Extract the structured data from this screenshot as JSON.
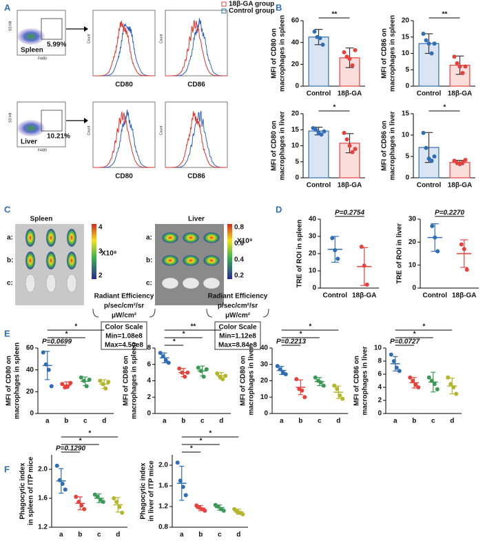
{
  "panel_labels": [
    "A",
    "B",
    "C",
    "D",
    "E",
    "F"
  ],
  "panel_a": {
    "legend": [
      "18β-GA group",
      "Control group"
    ],
    "rows": [
      {
        "tissue": "Spleen",
        "gate": "5.99%"
      },
      {
        "tissue": "Liver",
        "gate": "10.21%"
      }
    ],
    "markers": [
      "CD80",
      "CD86"
    ],
    "ss_axis": "SS Hlt",
    "fsc_axis": "F4/80",
    "count_axis": "Count"
  },
  "panel_c": {
    "groups": [
      {
        "title": "Spleen",
        "scale_ticks": [
          "4",
          "3",
          "2"
        ],
        "multiplier": "X10⁸",
        "min": "Min=1.08e8",
        "max": "Max=4.50e8"
      },
      {
        "title": "Liver",
        "scale_ticks": [
          "0.8",
          "0.6",
          "0.4",
          "0.2"
        ],
        "multiplier": "X10⁹",
        "min": "Min=1.12e8",
        "max": "Max=8.84e8"
      }
    ],
    "rows": [
      "a:",
      "b:",
      "c:"
    ],
    "unit": [
      "Radiant Efficiency",
      "p/sec/cm²/sr",
      "μW/cm²"
    ],
    "scale_title": "Color Scale"
  },
  "chart_data": [
    {
      "type": "bar",
      "ylabel": [
        "MFI of CD80 on",
        "macrophages in spleen"
      ],
      "categories": [
        "Control",
        "18β-GA"
      ],
      "colors": [
        "#2f6db5",
        "#e8413c"
      ],
      "means": [
        45,
        26
      ],
      "sd": [
        7,
        9
      ],
      "points": [
        [
          50,
          45,
          44,
          38
        ],
        [
          31,
          27,
          25,
          19,
          33
        ]
      ],
      "ylim": [
        0,
        60
      ],
      "yticks": [
        0,
        20,
        40,
        60
      ],
      "comparisons": [
        "**"
      ]
    },
    {
      "type": "bar",
      "ylabel": [
        "MFI of CD86 on",
        "macrophages in spleen"
      ],
      "categories": [
        "Control",
        "18β-GA"
      ],
      "colors": [
        "#2f6db5",
        "#e8413c"
      ],
      "means": [
        13,
        6.4
      ],
      "sd": [
        3,
        2.8
      ],
      "points": [
        [
          16,
          14,
          13,
          10,
          13
        ],
        [
          9,
          7,
          6,
          4,
          6
        ]
      ],
      "ylim": [
        0,
        20
      ],
      "yticks": [
        0,
        5,
        10,
        15,
        20
      ],
      "comparisons": [
        "**"
      ]
    },
    {
      "type": "bar",
      "ylabel": [
        "MFI of CD80 on",
        "macrophages in liver"
      ],
      "categories": [
        "Control",
        "18β-GA"
      ],
      "colors": [
        "#2f6db5",
        "#e8413c"
      ],
      "means": [
        14.6,
        10.8
      ],
      "sd": [
        1.2,
        3
      ],
      "points": [
        [
          15.5,
          15,
          14,
          13.5,
          14.5
        ],
        [
          14,
          12,
          10,
          8,
          9
        ]
      ],
      "ylim": [
        0,
        20
      ],
      "yticks": [
        0,
        5,
        10,
        15,
        20
      ],
      "comparisons": [
        "*"
      ]
    },
    {
      "type": "bar",
      "ylabel": [
        "MFI of CD86 on",
        "macrophages in liver"
      ],
      "categories": [
        "Control",
        "18β-GA"
      ],
      "colors": [
        "#2f6db5",
        "#e8413c"
      ],
      "means": [
        7.1,
        3.6
      ],
      "sd": [
        3.5,
        0.5
      ],
      "points": [
        [
          10.5,
          7,
          4.5,
          4,
          5
        ],
        [
          4,
          3.5,
          3.2,
          3.6,
          4.2
        ]
      ],
      "ylim": [
        0,
        15
      ],
      "yticks": [
        0,
        5,
        10,
        15
      ],
      "comparisons": [
        "*"
      ]
    },
    {
      "type": "scatter",
      "ylabel": [
        "TRE of ROI in spleen"
      ],
      "categories": [
        "Control",
        "18β-GA"
      ],
      "colors": [
        "#2f6db5",
        "#e8413c"
      ],
      "means": [
        22.5,
        12.5
      ],
      "sd": [
        7.5,
        11
      ],
      "points": [
        [
          29,
          22,
          17
        ],
        [
          24,
          13,
          2
        ]
      ],
      "ylim": [
        0,
        40
      ],
      "yticks": [
        0,
        10,
        20,
        30,
        40
      ],
      "comparisons": [
        "P=0.2754"
      ]
    },
    {
      "type": "scatter",
      "ylabel": [
        "TRE of ROI in liver"
      ],
      "categories": [
        "Control",
        "18β-GA"
      ],
      "colors": [
        "#2f6db5",
        "#e8413c"
      ],
      "means": [
        22,
        15
      ],
      "sd": [
        6,
        6
      ],
      "points": [
        [
          27,
          22,
          16
        ],
        [
          19,
          17,
          8
        ]
      ],
      "ylim": [
        0,
        30
      ],
      "yticks": [
        0,
        10,
        20,
        30
      ],
      "comparisons": [
        "P=0.2270"
      ]
    },
    {
      "type": "scatter",
      "ylabel": [
        "MFI of CD80 on",
        "macrophages in spleen"
      ],
      "categories": [
        "a",
        "b",
        "c",
        "d"
      ],
      "colors": [
        "#2f6db5",
        "#e8413c",
        "#3a9a55",
        "#b5b52a"
      ],
      "means": [
        44,
        26,
        29.5,
        27
      ],
      "sd": [
        13,
        3,
        4,
        4
      ],
      "points": [
        [
          56,
          45,
          40,
          25
        ],
        [
          27,
          24,
          25,
          28
        ],
        [
          33,
          30,
          25,
          31
        ],
        [
          30,
          27,
          23,
          29
        ]
      ],
      "ylim": [
        0,
        60
      ],
      "yticks": [
        0,
        20,
        40,
        60
      ],
      "comparisons": [
        "P=0.0699",
        "*",
        "*"
      ]
    },
    {
      "type": "scatter",
      "ylabel": [
        "MFI of CD86 on",
        "macrophages in spleen"
      ],
      "categories": [
        "a",
        "b",
        "c",
        "d"
      ],
      "colors": [
        "#2f6db5",
        "#e8413c",
        "#3a9a55",
        "#b5b52a"
      ],
      "means": [
        6.8,
        5,
        5.2,
        4.6
      ],
      "sd": [
        0.6,
        0.5,
        0.6,
        0.4
      ],
      "points": [
        [
          7.4,
          7,
          6.5,
          6.2
        ],
        [
          5.5,
          5,
          4.5,
          5
        ],
        [
          5.6,
          5.2,
          4.5,
          5.4
        ],
        [
          4.9,
          4.5,
          4.2,
          4.6
        ]
      ],
      "ylim": [
        0,
        8
      ],
      "yticks": [
        0,
        2,
        4,
        6,
        8
      ],
      "comparisons": [
        "*",
        "*",
        "**"
      ]
    },
    {
      "type": "scatter",
      "ylabel": [
        "MFI of CD80 on",
        "macrophages in liver"
      ],
      "categories": [
        "a",
        "b",
        "c",
        "d"
      ],
      "colors": [
        "#2f6db5",
        "#e8413c",
        "#3a9a55",
        "#b5b52a"
      ],
      "means": [
        26.3,
        16,
        19.5,
        13
      ],
      "sd": [
        2.5,
        4.5,
        2.5,
        3.8
      ],
      "points": [
        [
          29,
          27,
          25,
          24
        ],
        [
          21,
          15,
          14,
          10
        ],
        [
          22,
          20,
          19,
          17
        ],
        [
          17,
          15,
          11,
          9
        ]
      ],
      "ylim": [
        0,
        40
      ],
      "yticks": [
        0,
        10,
        20,
        30,
        40
      ],
      "comparisons": [
        "P=0.2213",
        "*",
        "*"
      ]
    },
    {
      "type": "scatter",
      "ylabel": [
        "MFI of CD86 on",
        "macrophages in liver"
      ],
      "categories": [
        "a",
        "b",
        "c",
        "d"
      ],
      "colors": [
        "#2f6db5",
        "#e8413c",
        "#3a9a55",
        "#b5b52a"
      ],
      "means": [
        7.6,
        4.7,
        4.8,
        4.2
      ],
      "sd": [
        1.1,
        0.8,
        1.5,
        1.2
      ],
      "points": [
        [
          9,
          8,
          7,
          6.5
        ],
        [
          5.5,
          5,
          4.4,
          4
        ],
        [
          5.5,
          5,
          4.5,
          3.7
        ],
        [
          5.5,
          4.5,
          4,
          3
        ]
      ],
      "ylim": [
        0,
        10
      ],
      "yticks": [
        0,
        2,
        4,
        6,
        8,
        10
      ],
      "comparisons": [
        "P=0.0727",
        "*",
        "*"
      ]
    },
    {
      "type": "scatter",
      "ylabel": [
        "Phagocytic index",
        "in spleen of ITP mice"
      ],
      "categories": [
        "a",
        "b",
        "c",
        "d"
      ],
      "colors": [
        "#2f6db5",
        "#e8413c",
        "#3a9a55",
        "#b5b52a"
      ],
      "means": [
        1.84,
        1.53,
        1.6,
        1.51
      ],
      "sd": [
        0.17,
        0.09,
        0.06,
        0.1
      ],
      "points": [
        [
          2.05,
          1.85,
          1.8,
          1.72
        ],
        [
          1.62,
          1.55,
          1.5,
          1.45
        ],
        [
          1.65,
          1.62,
          1.58,
          1.55
        ],
        [
          1.6,
          1.55,
          1.48,
          1.4
        ]
      ],
      "ylim": [
        1.2,
        2.2
      ],
      "yticks": [
        1.2,
        1.6,
        {
          "value": 2,
          "label": "2.0"
        }
      ],
      "comparisons": [
        "P=0.1290",
        "*",
        "*"
      ]
    },
    {
      "type": "scatter",
      "ylabel": [
        "Phagocytic index",
        "in liver of ITP mice"
      ],
      "categories": [
        "a",
        "b",
        "c",
        "d"
      ],
      "colors": [
        "#2f6db5",
        "#e8413c",
        "#3a9a55",
        "#b5b52a"
      ],
      "means": [
        1.65,
        1.17,
        1.18,
        1.1
      ],
      "sd": [
        0.33,
        0.05,
        0.05,
        0.05
      ],
      "points": [
        [
          2.05,
          1.7,
          1.58,
          1.42
        ],
        [
          1.22,
          1.18,
          1.15,
          1.12
        ],
        [
          1.23,
          1.2,
          1.15,
          1.12
        ],
        [
          1.15,
          1.1,
          1.08,
          1.05
        ]
      ],
      "ylim": [
        0.8,
        2.2
      ],
      "yticks": [
        0.8,
        1.2,
        1.6,
        {
          "value": 2,
          "label": "2.0"
        }
      ],
      "comparisons": [
        "*",
        "*",
        "*"
      ]
    }
  ]
}
